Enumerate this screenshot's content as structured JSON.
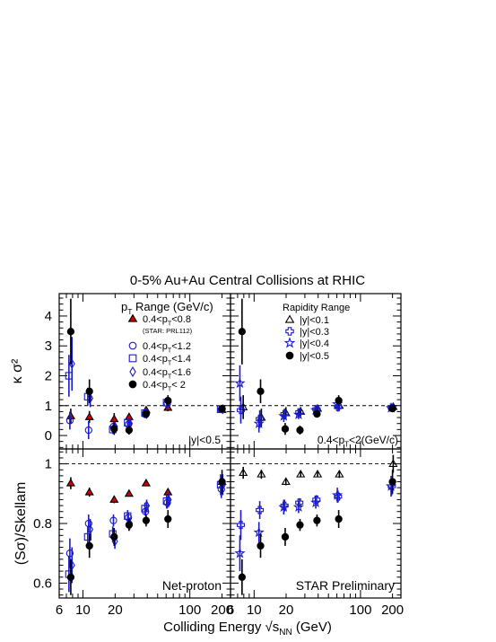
{
  "title": "0-5% Au+Au Central Collisions at RHIC",
  "xlabel": "Colliding Energy √s",
  "xlabel_sub": "NN",
  "xlabel_unit": " (GeV)",
  "colors": {
    "black": "#000000",
    "blue": "#1a1acc",
    "red": "#cc0000"
  },
  "chart_data": [
    {
      "id": "top-left",
      "type": "scatter",
      "xscale": "log",
      "xlim": [
        6,
        240
      ],
      "ylim": [
        -0.45,
        4.75
      ],
      "xticks": [],
      "yticks": [
        0,
        1,
        2,
        3,
        4
      ],
      "ylabel": "κ σ²",
      "ref_line": 1,
      "legend_title": "p_T Range (GeV/c)",
      "note": "|y|<0.5",
      "series": [
        {
          "name": "0.4<p_T<0.8",
          "sub": "(STAR: PRL112)",
          "marker": "triangle-filled-red",
          "x": [
            7.7,
            11.5,
            19.6,
            27,
            39,
            62.4,
            200
          ],
          "y": [
            0.65,
            0.62,
            0.55,
            0.62,
            0.85,
            0.93,
            0.86
          ],
          "err": [
            0.25,
            0.2,
            0.2,
            0.12,
            0.1,
            0.12,
            0.06
          ]
        },
        {
          "name": "0.4<p_T<1.2",
          "marker": "circle-open-blue",
          "x": [
            7.55,
            11.3,
            19.3,
            26.6,
            38.5,
            61.5,
            197
          ],
          "y": [
            0.5,
            0.18,
            0.3,
            0.37,
            0.7,
            1.07,
            0.87
          ],
          "err": [
            0.3,
            0.3,
            0.15,
            0.12,
            0.1,
            0.15,
            0.07
          ]
        },
        {
          "name": "0.4<p_T<1.4",
          "marker": "square-open-blue",
          "x": [
            7.4,
            11.1,
            19.0,
            26.2,
            38.0,
            60.6,
            194
          ],
          "y": [
            2.0,
            1.3,
            0.2,
            0.43,
            0.75,
            1.1,
            0.88
          ],
          "err": [
            0.7,
            0.3,
            0.15,
            0.12,
            0.1,
            0.15,
            0.07
          ]
        },
        {
          "name": "0.4<p_T<1.6",
          "marker": "diamond-open-blue",
          "x": [
            7.9,
            11.7,
            19.9,
            27.4,
            39.5,
            63.3,
            203
          ],
          "y": [
            2.4,
            1.25,
            0.3,
            0.4,
            0.72,
            1.12,
            0.88
          ],
          "err": [
            0.9,
            0.3,
            0.15,
            0.12,
            0.1,
            0.15,
            0.07
          ]
        },
        {
          "name": "0.4<p_T< 2",
          "marker": "circle-filled-black",
          "x": [
            7.7,
            11.5,
            19.6,
            27,
            39,
            62.4,
            200
          ],
          "y": [
            3.48,
            1.48,
            0.22,
            0.18,
            0.72,
            1.17,
            0.9
          ],
          "err": [
            1.1,
            0.4,
            0.2,
            0.15,
            0.12,
            0.18,
            0.07
          ]
        }
      ]
    },
    {
      "id": "top-right",
      "type": "scatter",
      "xscale": "log",
      "xlim": [
        6,
        240
      ],
      "ylim": [
        -0.45,
        4.75
      ],
      "xticks": [],
      "yticks": [],
      "ref_line": 1,
      "legend_title": "Rapidity Range",
      "note": "0.4<p_T<2(GeV/c)",
      "series": [
        {
          "name": "|y|<0.1",
          "marker": "triangle-open-black",
          "x": [
            7.9,
            11.7,
            19.9,
            27.4,
            39.5,
            63.3,
            203
          ],
          "y": [
            0.95,
            0.6,
            0.75,
            0.8,
            0.9,
            1.0,
            0.96
          ],
          "err": [
            0.4,
            0.3,
            0.2,
            0.15,
            0.12,
            0.15,
            0.08
          ]
        },
        {
          "name": "|y|<0.3",
          "marker": "cross-open-blue",
          "x": [
            7.5,
            11.3,
            19.3,
            26.6,
            38.5,
            61.5,
            197
          ],
          "y": [
            0.85,
            0.55,
            0.72,
            0.78,
            0.88,
            0.95,
            0.93
          ],
          "err": [
            0.45,
            0.3,
            0.18,
            0.12,
            0.1,
            0.15,
            0.07
          ]
        },
        {
          "name": "|y|<0.4",
          "marker": "star-open-blue",
          "x": [
            7.35,
            11.1,
            19.0,
            26.2,
            38.0,
            60.6,
            194
          ],
          "y": [
            1.75,
            0.4,
            0.65,
            0.7,
            0.85,
            1.05,
            0.92
          ],
          "err": [
            0.6,
            0.3,
            0.2,
            0.15,
            0.12,
            0.15,
            0.08
          ]
        },
        {
          "name": "|y|<0.5",
          "marker": "circle-filled-black",
          "x": [
            7.7,
            11.5,
            19.6,
            27,
            39,
            62.4,
            200
          ],
          "y": [
            3.48,
            1.48,
            0.22,
            0.18,
            0.72,
            1.17,
            0.9
          ],
          "err": [
            1.1,
            0.4,
            0.2,
            0.15,
            0.12,
            0.18,
            0.07
          ]
        }
      ]
    },
    {
      "id": "bottom-left",
      "type": "scatter",
      "xscale": "log",
      "xlim": [
        6,
        240
      ],
      "ylim": [
        0.55,
        1.05
      ],
      "xticks": [
        6,
        10,
        20,
        100,
        200
      ],
      "yticks": [
        0.6,
        0.8,
        1
      ],
      "ylabel": "(Sσ)/Skellam",
      "ref_line": 1,
      "note": "Net-proton",
      "series": [
        {
          "name": "0.4<p_T<0.8",
          "marker": "triangle-filled-red",
          "x": [
            7.7,
            11.5,
            19.6,
            27,
            39,
            62.4,
            200
          ],
          "y": [
            0.935,
            0.905,
            0.88,
            0.9,
            0.935,
            0.905,
            0.94
          ],
          "err": [
            0.02,
            0.015,
            0.012,
            0.01,
            0.008,
            0.012,
            0.02
          ]
        },
        {
          "name": "0.4<p_T<1.2",
          "marker": "circle-open-blue",
          "x": [
            7.55,
            11.3,
            19.3,
            26.6,
            38.5,
            61.5,
            197
          ],
          "y": [
            0.7,
            0.8,
            0.81,
            0.82,
            0.84,
            0.87,
            0.915
          ],
          "err": [
            0.05,
            0.03,
            0.02,
            0.015,
            0.015,
            0.02,
            0.03
          ]
        },
        {
          "name": "0.4<p_T<1.4",
          "marker": "square-open-blue",
          "x": [
            7.4,
            11.1,
            19.0,
            26.2,
            38.0,
            60.6,
            194
          ],
          "y": [
            0.63,
            0.755,
            0.765,
            0.825,
            0.85,
            0.875,
            0.93
          ],
          "err": [
            0.06,
            0.035,
            0.025,
            0.02,
            0.02,
            0.025,
            0.035
          ]
        },
        {
          "name": "0.4<p_T<1.6",
          "marker": "diamond-open-blue",
          "x": [
            7.9,
            11.7,
            19.9,
            27.4,
            39.5,
            63.3,
            203
          ],
          "y": [
            0.66,
            0.78,
            0.74,
            0.8,
            0.86,
            0.88,
            0.93
          ],
          "err": [
            0.06,
            0.035,
            0.025,
            0.02,
            0.02,
            0.025,
            0.035
          ]
        },
        {
          "name": "0.4<p_T< 2",
          "marker": "circle-filled-black",
          "x": [
            7.7,
            11.5,
            19.6,
            27,
            39,
            62.4,
            200
          ],
          "y": [
            0.62,
            0.725,
            0.755,
            0.795,
            0.81,
            0.815,
            0.94
          ],
          "err": [
            0.06,
            0.04,
            0.03,
            0.02,
            0.02,
            0.03,
            0.04
          ]
        }
      ]
    },
    {
      "id": "bottom-right",
      "type": "scatter",
      "xscale": "log",
      "xlim": [
        6,
        240
      ],
      "ylim": [
        0.55,
        1.05
      ],
      "xticks": [
        6,
        10,
        20,
        100,
        200
      ],
      "yticks": [],
      "ref_line": 1,
      "note": "STAR Preliminary",
      "series": [
        {
          "name": "|y|<0.1",
          "marker": "triangle-open-black",
          "x": [
            7.9,
            11.7,
            19.9,
            27.4,
            39.5,
            63.3,
            203
          ],
          "y": [
            0.97,
            0.965,
            0.94,
            0.965,
            0.965,
            0.965,
            1.0
          ],
          "err": [
            0.02,
            0.015,
            0.012,
            0.01,
            0.008,
            0.012,
            0.03
          ]
        },
        {
          "name": "|y|<0.3",
          "marker": "cross-open-blue",
          "x": [
            7.5,
            11.3,
            19.3,
            26.6,
            38.5,
            61.5,
            197
          ],
          "y": [
            0.795,
            0.845,
            0.86,
            0.87,
            0.88,
            0.89,
            0.925
          ],
          "err": [
            0.05,
            0.03,
            0.02,
            0.015,
            0.015,
            0.02,
            0.03
          ]
        },
        {
          "name": "|y|<0.4",
          "marker": "star-open-blue",
          "x": [
            7.35,
            11.1,
            19.0,
            26.2,
            38.0,
            60.6,
            194
          ],
          "y": [
            0.7,
            0.77,
            0.855,
            0.855,
            0.87,
            0.895,
            0.925
          ],
          "err": [
            0.06,
            0.035,
            0.025,
            0.02,
            0.02,
            0.025,
            0.035
          ]
        },
        {
          "name": "|y|<0.5",
          "marker": "circle-filled-black",
          "x": [
            7.7,
            11.5,
            19.6,
            27,
            39,
            62.4,
            200
          ],
          "y": [
            0.62,
            0.725,
            0.755,
            0.795,
            0.81,
            0.815,
            0.94
          ],
          "err": [
            0.06,
            0.04,
            0.03,
            0.02,
            0.02,
            0.03,
            0.04
          ]
        }
      ]
    }
  ]
}
